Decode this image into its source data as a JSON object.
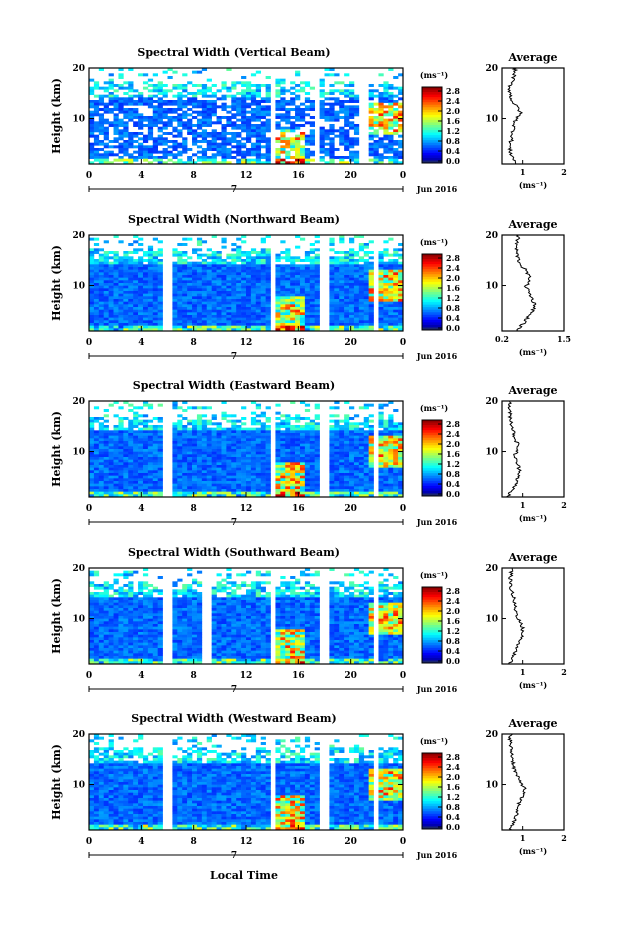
{
  "figure": {
    "xlabel": "Local Time",
    "ylabel": "Height (km)",
    "date_label": "Jun 2016",
    "day_marker": "7",
    "average_title": "Average",
    "unit_label": "(ms⁻¹)",
    "colorbar_ticks": [
      "2.8",
      "2.4",
      "2.0",
      "1.6",
      "1.2",
      "0.8",
      "0.4",
      "0.0"
    ],
    "x_ticks": [
      "0",
      "4",
      "8",
      "12",
      "16",
      "20",
      "0"
    ],
    "y_ticks": [
      "20",
      "10"
    ]
  },
  "chart_data": [
    {
      "type": "heatmap",
      "title": "Spectral Width (Vertical Beam)",
      "xlabel": "Local Time",
      "ylabel": "Height (km)",
      "xlim": [
        0,
        24
      ],
      "ylim": [
        1,
        20
      ],
      "colorbar": {
        "label": "(ms⁻¹)",
        "range": [
          0.0,
          2.8
        ]
      },
      "gaps_hours": [
        14,
        17.5,
        21
      ],
      "average_profile": {
        "title": "Average",
        "xticks": [
          "1",
          "2"
        ],
        "xlim": [
          0.5,
          2
        ],
        "xlabel": "(ms⁻¹)",
        "yticks": [
          "20",
          "10"
        ],
        "x_values": [
          0.82,
          0.8,
          0.78,
          0.72,
          0.68,
          0.7,
          0.72,
          0.78,
          0.9,
          0.95,
          0.85,
          0.8,
          0.78,
          0.76,
          0.74,
          0.7,
          0.68,
          0.72,
          0.78,
          0.85
        ]
      }
    },
    {
      "type": "heatmap",
      "title": "Spectral Width (Northward Beam)",
      "xlabel": "Local Time",
      "ylabel": "Height (km)",
      "xlim": [
        0,
        24
      ],
      "ylim": [
        1,
        20
      ],
      "colorbar": {
        "label": "(ms⁻¹)",
        "range": [
          0.0,
          2.8
        ]
      },
      "gaps_hours": [
        6,
        14,
        18,
        22
      ],
      "average_profile": {
        "title": "Average",
        "xticks": [
          "0.2",
          "1.5"
        ],
        "xlim": [
          0.2,
          1.5
        ],
        "xlabel": "(ms⁻¹)",
        "yticks": [
          "20",
          "10"
        ],
        "x_values": [
          0.55,
          0.52,
          0.5,
          0.5,
          0.52,
          0.55,
          0.6,
          0.7,
          0.75,
          0.8,
          0.7,
          0.75,
          0.8,
          0.85,
          0.9,
          0.85,
          0.75,
          0.7,
          0.6,
          0.5
        ]
      }
    },
    {
      "type": "heatmap",
      "title": "Spectral Width (Eastward Beam)",
      "xlabel": "Local Time",
      "ylabel": "Height (km)",
      "xlim": [
        0,
        24
      ],
      "ylim": [
        1,
        20
      ],
      "colorbar": {
        "label": "(ms⁻¹)",
        "range": [
          0.0,
          2.8
        ]
      },
      "gaps_hours": [
        6,
        14,
        18,
        22
      ],
      "average_profile": {
        "title": "Average",
        "xticks": [
          "1",
          "2"
        ],
        "xlim": [
          0.5,
          2
        ],
        "xlabel": "(ms⁻¹)",
        "yticks": [
          "20",
          "10"
        ],
        "x_values": [
          0.7,
          0.68,
          0.68,
          0.7,
          0.72,
          0.75,
          0.78,
          0.8,
          0.85,
          0.9,
          0.85,
          0.8,
          0.85,
          0.9,
          0.95,
          0.9,
          0.85,
          0.8,
          0.7,
          0.65
        ]
      }
    },
    {
      "type": "heatmap",
      "title": "Spectral Width (Southward Beam)",
      "xlabel": "Local Time",
      "ylabel": "Height (km)",
      "xlim": [
        0,
        24
      ],
      "ylim": [
        1,
        20
      ],
      "colorbar": {
        "label": "(ms⁻¹)",
        "range": [
          0.0,
          2.8
        ]
      },
      "gaps_hours": [
        6,
        9,
        14,
        18,
        22
      ],
      "average_profile": {
        "title": "Average",
        "xticks": [
          "1",
          "2"
        ],
        "xlim": [
          0.5,
          2
        ],
        "xlabel": "(ms⁻¹)",
        "yticks": [
          "20",
          "10"
        ],
        "x_values": [
          0.75,
          0.72,
          0.7,
          0.7,
          0.72,
          0.75,
          0.78,
          0.8,
          0.82,
          0.85,
          0.9,
          0.95,
          1.0,
          1.0,
          0.95,
          0.9,
          0.85,
          0.8,
          0.75,
          0.7
        ]
      }
    },
    {
      "type": "heatmap",
      "title": "Spectral Width (Westward Beam)",
      "xlabel": "Local Time",
      "ylabel": "Height (km)",
      "xlim": [
        0,
        24
      ],
      "ylim": [
        1,
        20
      ],
      "colorbar": {
        "label": "(ms⁻¹)",
        "range": [
          0.0,
          2.8
        ]
      },
      "gaps_hours": [
        6,
        14,
        18,
        22
      ],
      "average_profile": {
        "title": "Average",
        "xticks": [
          "1",
          "2"
        ],
        "xlim": [
          0.5,
          2
        ],
        "xlabel": "(ms⁻¹)",
        "yticks": [
          "20",
          "10"
        ],
        "x_values": [
          0.72,
          0.7,
          0.7,
          0.72,
          0.74,
          0.76,
          0.78,
          0.8,
          0.85,
          0.9,
          1.0,
          1.05,
          1.0,
          0.95,
          0.9,
          0.88,
          0.85,
          0.8,
          0.75,
          0.7
        ]
      }
    }
  ]
}
